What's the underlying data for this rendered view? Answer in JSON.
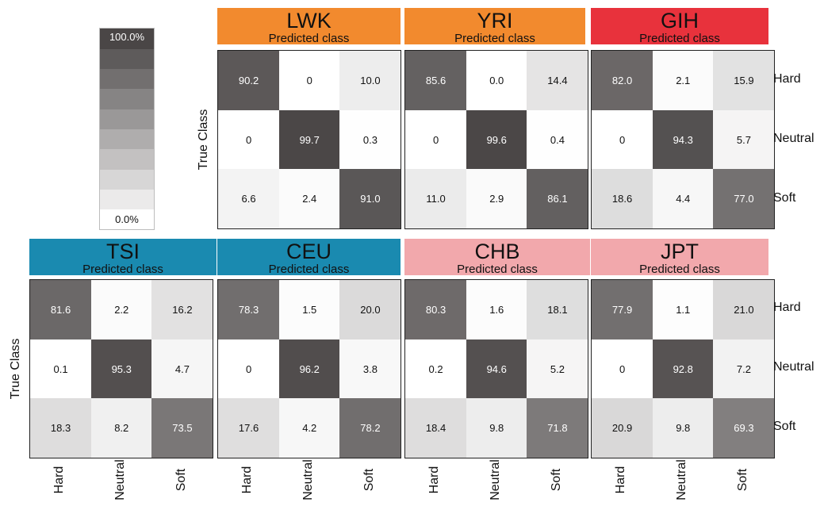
{
  "chart_data": {
    "type": "heatmap",
    "row_axis_label": "True Class",
    "col_axis_label": "Predicted class",
    "classes": [
      "Hard",
      "Neutral",
      "Soft"
    ],
    "colorbar": {
      "max_label": "100.0%",
      "min_label": "0.0%",
      "range": [
        0,
        100
      ],
      "low_color": "#ffffff",
      "high_color": "#4a4646"
    },
    "panels": [
      {
        "name": "LWK",
        "color": "#f28a2e",
        "values": [
          [
            "90.2",
            "0",
            "10.0"
          ],
          [
            "0",
            "99.7",
            "0.3"
          ],
          [
            "6.6",
            "2.4",
            "91.0"
          ]
        ]
      },
      {
        "name": "YRI",
        "color": "#f28a2e",
        "values": [
          [
            "85.6",
            "0.0",
            "14.4"
          ],
          [
            "0",
            "99.6",
            "0.4"
          ],
          [
            "11.0",
            "2.9",
            "86.1"
          ]
        ]
      },
      {
        "name": "GIH",
        "color": "#e8323c",
        "values": [
          [
            "82.0",
            "2.1",
            "15.9"
          ],
          [
            "0",
            "94.3",
            "5.7"
          ],
          [
            "18.6",
            "4.4",
            "77.0"
          ]
        ]
      },
      {
        "name": "TSI",
        "color": "#1a8ab0",
        "values": [
          [
            "81.6",
            "2.2",
            "16.2"
          ],
          [
            "0.1",
            "95.3",
            "4.7"
          ],
          [
            "18.3",
            "8.2",
            "73.5"
          ]
        ]
      },
      {
        "name": "CEU",
        "color": "#1a8ab0",
        "values": [
          [
            "78.3",
            "1.5",
            "20.0"
          ],
          [
            "0",
            "96.2",
            "3.8"
          ],
          [
            "17.6",
            "4.2",
            "78.2"
          ]
        ]
      },
      {
        "name": "CHB",
        "color": "#f2a8ac",
        "values": [
          [
            "80.3",
            "1.6",
            "18.1"
          ],
          [
            "0.2",
            "94.6",
            "5.2"
          ],
          [
            "18.4",
            "9.8",
            "71.8"
          ]
        ]
      },
      {
        "name": "JPT",
        "color": "#f2a8ac",
        "values": [
          [
            "77.9",
            "1.1",
            "21.0"
          ],
          [
            "0",
            "92.8",
            "7.2"
          ],
          [
            "20.9",
            "9.8",
            "69.3"
          ]
        ]
      }
    ]
  }
}
